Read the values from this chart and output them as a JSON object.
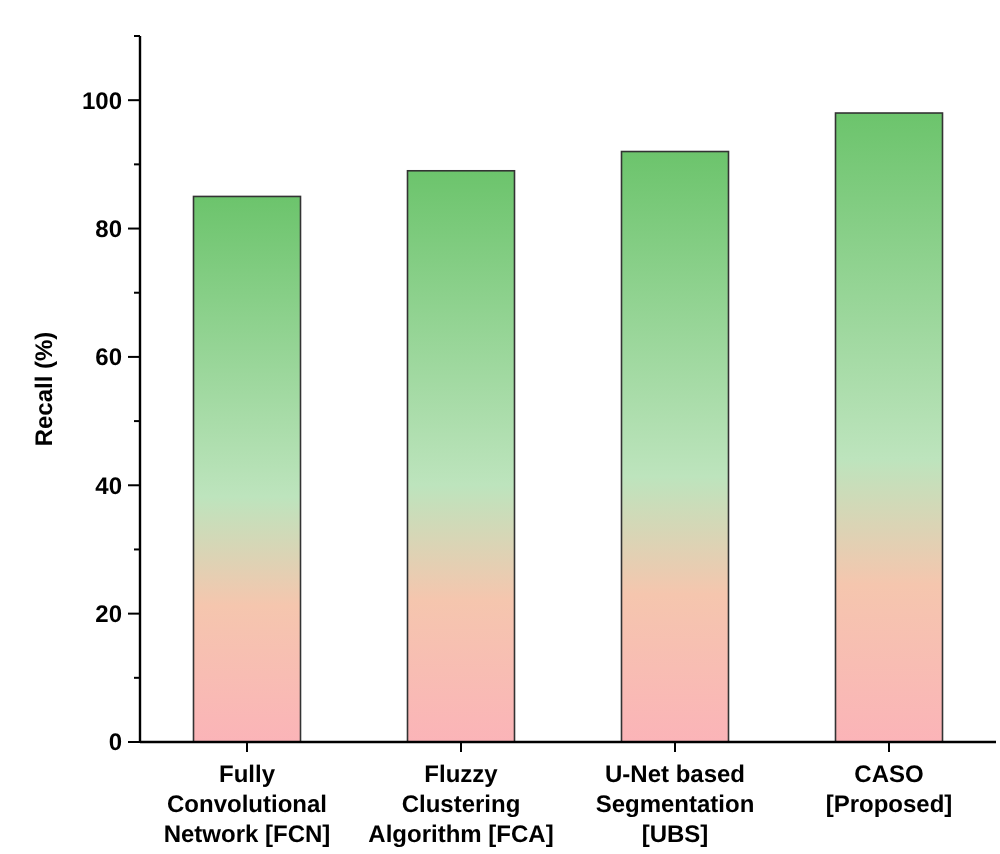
{
  "chart_data": {
    "type": "bar",
    "ylabel": "Recall (%)",
    "categories": [
      "Fully\nConvolutional\nNetwork [FCN]",
      "Fluzzy\nClustering\nAlgorithm [FCA]",
      "U-Net based\nSegmentation\n[UBS]",
      "CASO\n[Proposed]"
    ],
    "values": [
      85,
      89,
      92,
      98
    ],
    "color": "#6cc46c",
    "ylim": [
      0,
      110
    ],
    "yticks": [
      0,
      {
        "value": 10,
        "label": null
      },
      20,
      {
        "value": 30,
        "label": null
      },
      40,
      {
        "value": 50,
        "label": null
      },
      60,
      {
        "value": 70,
        "label": null
      },
      80,
      {
        "value": 90,
        "label": null
      },
      100,
      {
        "value": 110,
        "label": null
      }
    ],
    "grid": false
  }
}
